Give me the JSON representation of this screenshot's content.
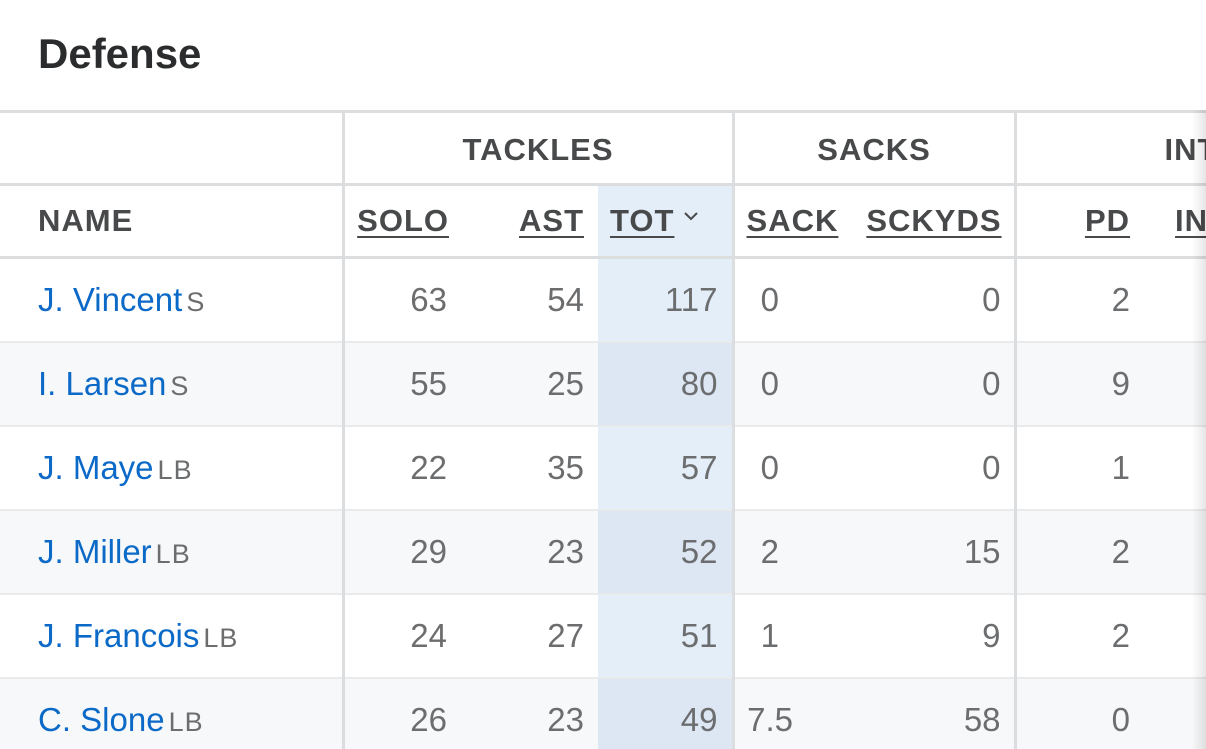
{
  "page": {
    "title": "Defense"
  },
  "groups": {
    "tackles": "TACKLES",
    "sacks": "SACKS",
    "int": "INT"
  },
  "columns": {
    "name": "NAME",
    "solo": "SOLO",
    "ast": "AST",
    "tot": "TOT",
    "sack": "SACK",
    "sckyds": "SCKYDS",
    "pd": "PD",
    "int": "INT"
  },
  "sort": {
    "column": "TOT",
    "direction": "descending",
    "icon": "chevron-down-icon"
  },
  "colors": {
    "link": "#0b69c7",
    "sorted_column": "#e3eef9",
    "border": "#dcdddf"
  },
  "rows": [
    {
      "name": "J. Vincent",
      "pos": "S",
      "solo": "63",
      "ast": "54",
      "tot": "117",
      "sack": "0",
      "sckyds": "0",
      "pd": "2"
    },
    {
      "name": "I. Larsen",
      "pos": "S",
      "solo": "55",
      "ast": "25",
      "tot": "80",
      "sack": "0",
      "sckyds": "0",
      "pd": "9"
    },
    {
      "name": "J. Maye",
      "pos": "LB",
      "solo": "22",
      "ast": "35",
      "tot": "57",
      "sack": "0",
      "sckyds": "0",
      "pd": "1"
    },
    {
      "name": "J. Miller",
      "pos": "LB",
      "solo": "29",
      "ast": "23",
      "tot": "52",
      "sack": "2",
      "sckyds": "15",
      "pd": "2"
    },
    {
      "name": "J. Francois",
      "pos": "LB",
      "solo": "24",
      "ast": "27",
      "tot": "51",
      "sack": "1",
      "sckyds": "9",
      "pd": "2"
    },
    {
      "name": "C. Slone",
      "pos": "LB",
      "solo": "26",
      "ast": "23",
      "tot": "49",
      "sack": "7.5",
      "sckyds": "58",
      "pd": "0"
    }
  ]
}
